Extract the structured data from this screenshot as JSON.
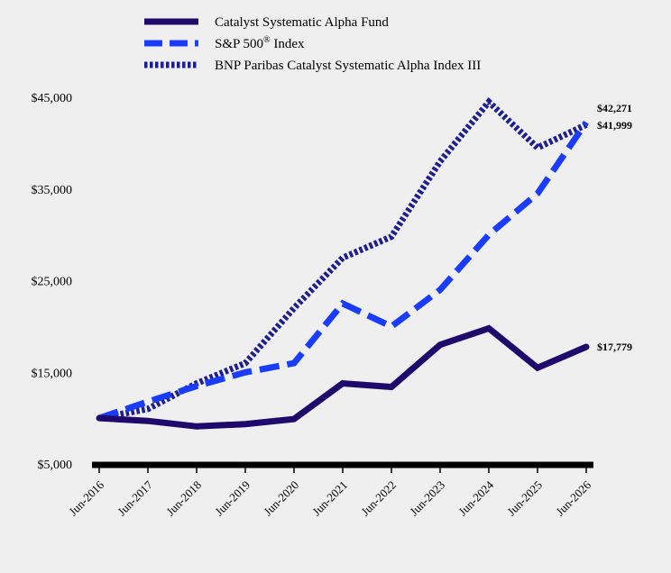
{
  "chart_data": {
    "type": "line",
    "title": "",
    "xlabel": "",
    "ylabel": "",
    "categories": [
      "Jun-2016",
      "Jun-2017",
      "Jun-2018",
      "Jun-2019",
      "Jun-2020",
      "Jun-2021",
      "Jun-2022",
      "Jun-2023",
      "Jun-2024",
      "Jun-2025",
      "Jun-2026"
    ],
    "ylim": [
      5000,
      45000
    ],
    "yticks": [
      5000,
      15000,
      25000,
      35000,
      45000
    ],
    "ytick_labels": [
      "$5,000",
      "$15,000",
      "$25,000",
      "$35,000",
      "$45,000"
    ],
    "legend_position": "top",
    "grid": false,
    "series": [
      {
        "name": "Catalyst Systematic Alpha Fund",
        "name_sup": "",
        "name_suffix": "",
        "color": "#1e0a6b",
        "style": "solid",
        "values": [
          10000,
          9700,
          9100,
          9350,
          9900,
          13800,
          13400,
          18000,
          19800,
          15500,
          17779
        ],
        "end_label": "$17,779"
      },
      {
        "name": "S&P 500",
        "name_sup": "®",
        "name_suffix": " Index",
        "color": "#1a3cff",
        "style": "dashed",
        "values": [
          10000,
          11800,
          13500,
          15000,
          16000,
          22500,
          20000,
          24000,
          30000,
          34500,
          42271
        ],
        "end_label": "$42,271"
      },
      {
        "name": "BNP Paribas Catalyst Systematic Alpha Index III",
        "name_sup": "",
        "name_suffix": "",
        "color": "#1e1e8c",
        "style": "dotted",
        "values": [
          10000,
          11000,
          13800,
          16000,
          22000,
          27500,
          29800,
          38000,
          44500,
          39500,
          41999
        ],
        "end_label": "$41,999"
      }
    ]
  }
}
